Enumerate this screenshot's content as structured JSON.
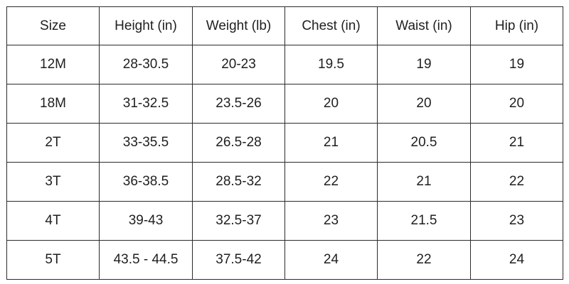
{
  "table": {
    "headers": [
      "Size",
      "Height (in)",
      "Weight (lb)",
      "Chest (in)",
      "Waist (in)",
      "Hip (in)"
    ],
    "rows": [
      [
        "12M",
        "28-30.5",
        "20-23",
        "19.5",
        "19",
        "19"
      ],
      [
        "18M",
        "31-32.5",
        "23.5-26",
        "20",
        "20",
        "20"
      ],
      [
        "2T",
        "33-35.5",
        "26.5-28",
        "21",
        "20.5",
        "21"
      ],
      [
        "3T",
        "36-38.5",
        "28.5-32",
        "22",
        "21",
        "22"
      ],
      [
        "4T",
        "39-43",
        "32.5-37",
        "23",
        "21.5",
        "23"
      ],
      [
        "5T",
        "43.5 - 44.5",
        "37.5-42",
        "24",
        "22",
        "24"
      ]
    ]
  }
}
